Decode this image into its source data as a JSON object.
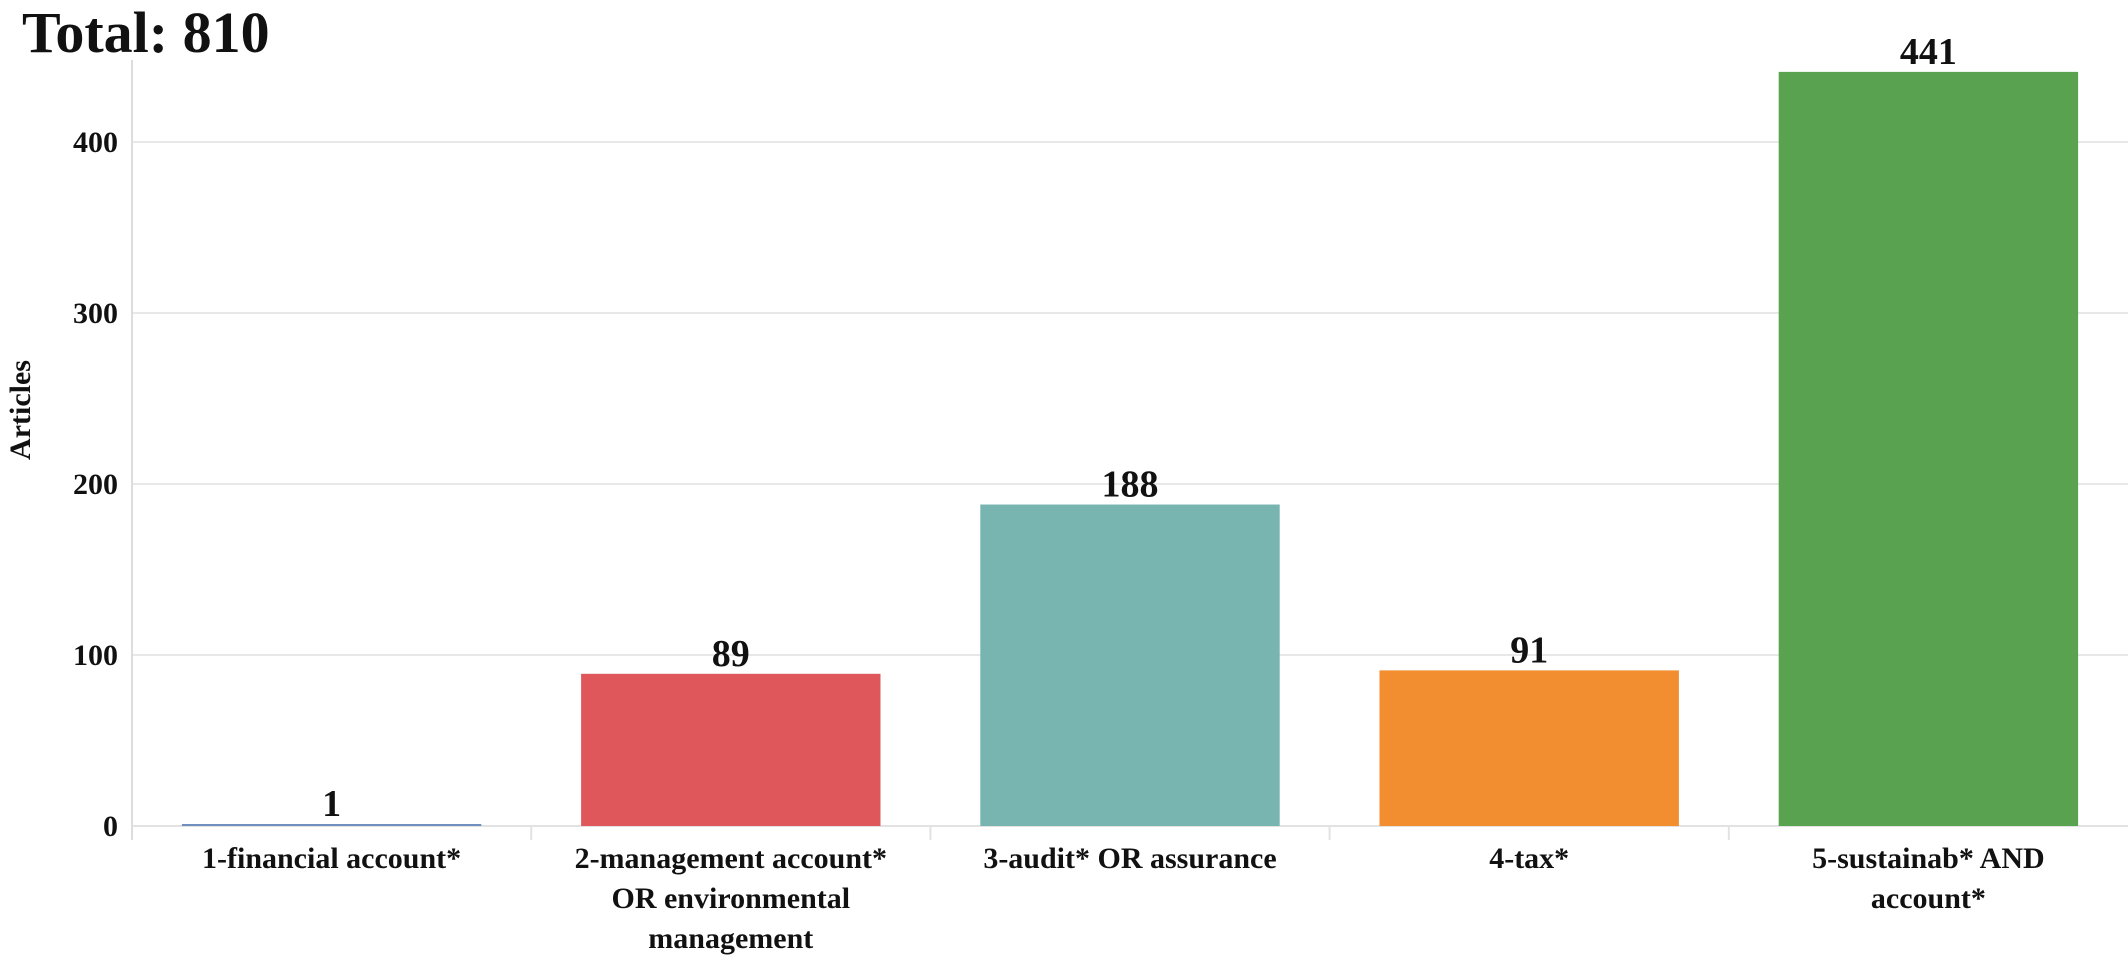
{
  "header": {
    "total_text": "Total: 810"
  },
  "chart_data": {
    "type": "bar",
    "categories": [
      [
        "1-financial account*"
      ],
      [
        "2-management account*",
        "OR environmental",
        "management"
      ],
      [
        "3-audit* OR assurance"
      ],
      [
        "4-tax*"
      ],
      [
        "5-sustainab* AND",
        "account*"
      ]
    ],
    "values": [
      1,
      89,
      188,
      91,
      441
    ],
    "colors": [
      "#6f8fbf",
      "#e0575b",
      "#78b5b0",
      "#f28e2f",
      "#59a24f"
    ],
    "ylabel": "Articles",
    "xlabel": "",
    "ylim": [
      0,
      441
    ],
    "yticks": [
      0,
      100,
      200,
      300,
      400
    ],
    "grid": true
  }
}
